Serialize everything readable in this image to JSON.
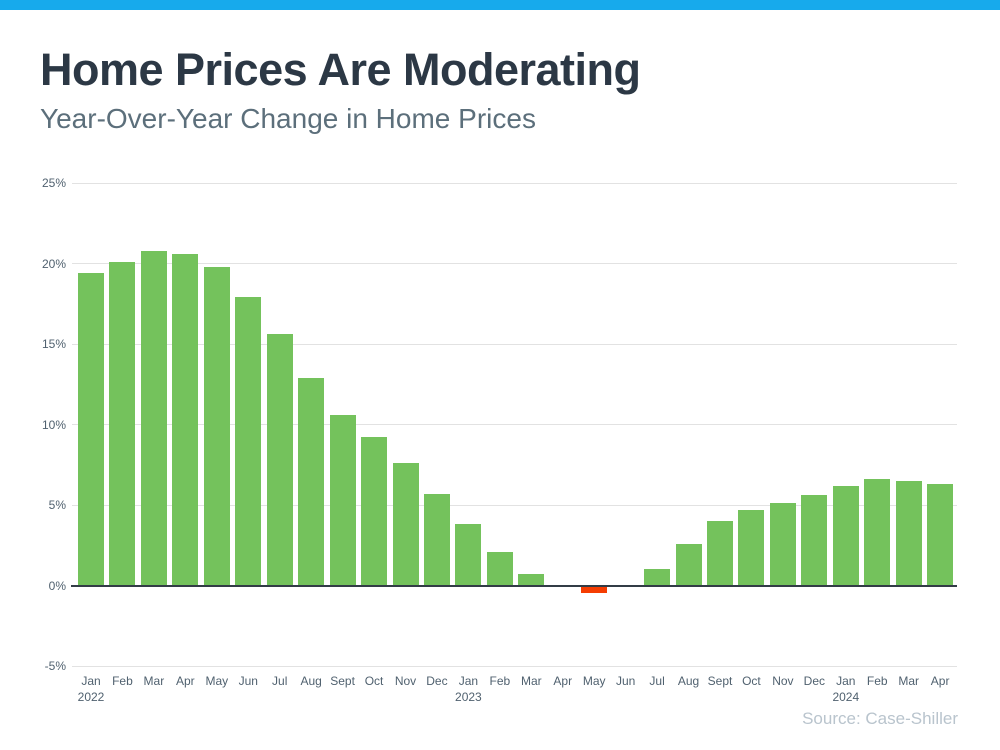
{
  "page": {
    "title": "Home Prices Are Moderating",
    "subtitle": "Year-Over-Year Change in Home Prices",
    "source": "Source: Case-Shiller",
    "accent_bar_color": "#17aaec"
  },
  "chart_data": {
    "type": "bar",
    "title": "Home Prices Are Moderating",
    "subtitle": "Year-Over-Year Change in Home Prices",
    "source": "Source: Case-Shiller",
    "categories": [
      "Jan 2022",
      "Feb 2022",
      "Mar 2022",
      "Apr 2022",
      "May 2022",
      "Jun 2022",
      "Jul 2022",
      "Aug 2022",
      "Sept 2022",
      "Oct 2022",
      "Nov 2022",
      "Dec 2022",
      "Jan 2023",
      "Feb 2023",
      "Mar 2023",
      "Apr 2023",
      "May 2023",
      "Jun 2023",
      "Jul 2023",
      "Aug 2023",
      "Sept 2023",
      "Oct 2023",
      "Nov 2023",
      "Dec 2023",
      "Jan 2024",
      "Feb 2024",
      "Mar 2024",
      "Apr 2024"
    ],
    "month_labels": [
      "Jan",
      "Feb",
      "Mar",
      "Apr",
      "May",
      "Jun",
      "Jul",
      "Aug",
      "Sept",
      "Oct",
      "Nov",
      "Dec",
      "Jan",
      "Feb",
      "Mar",
      "Apr",
      "May",
      "Jun",
      "Jul",
      "Aug",
      "Sept",
      "Oct",
      "Nov",
      "Dec",
      "Jan",
      "Feb",
      "Mar",
      "Apr"
    ],
    "year_labels": {
      "0": "2022",
      "12": "2023",
      "24": "2024"
    },
    "values": [
      19.4,
      20.1,
      20.8,
      20.6,
      19.8,
      17.9,
      15.6,
      12.9,
      10.6,
      9.2,
      7.6,
      5.7,
      3.8,
      2.1,
      0.7,
      0.0,
      -0.4,
      0.0,
      1.0,
      2.6,
      4.0,
      4.7,
      5.1,
      5.6,
      6.2,
      6.6,
      6.5,
      6.3
    ],
    "unit": "%",
    "yticks": [
      {
        "value": 25,
        "label": "25%"
      },
      {
        "value": 20,
        "label": "20%"
      },
      {
        "value": 15,
        "label": "15%"
      },
      {
        "value": 10,
        "label": "10%"
      },
      {
        "value": 5,
        "label": "5%"
      },
      {
        "value": 0,
        "label": "0%"
      },
      {
        "value": -5,
        "label": "-5%"
      }
    ],
    "ylim": [
      -5,
      25
    ],
    "grid": true,
    "legend_position": "none",
    "bar_color_positive": "#74c25c",
    "bar_color_negative": "#f53d02",
    "gridline_color": "#e2e2e2",
    "zero_axis_color": "#323c46"
  }
}
